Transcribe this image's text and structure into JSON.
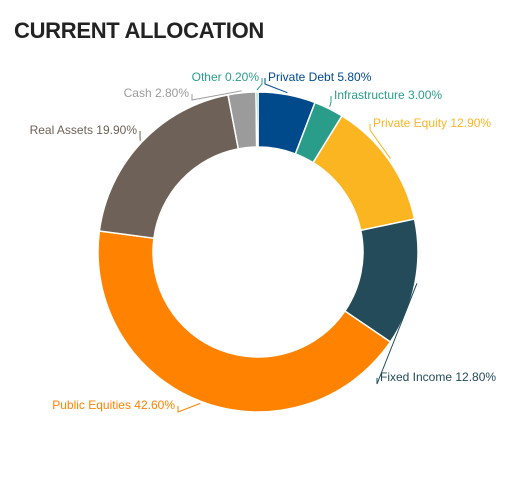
{
  "chart_data": {
    "type": "pie",
    "donut": true,
    "title": "CURRENT ALLOCATION",
    "categories": [
      "Private Debt",
      "Infrastructure",
      "Private Equity",
      "Fixed Income",
      "Public Equities",
      "Real Assets",
      "Cash",
      "Other"
    ],
    "values": [
      5.8,
      3.0,
      12.9,
      12.8,
      42.6,
      19.9,
      2.8,
      0.2
    ],
    "value_labels": [
      "5.80%",
      "3.00%",
      "12.90%",
      "12.80%",
      "42.60%",
      "19.90%",
      "2.80%",
      "0.20%"
    ],
    "colors": [
      "#004a8c",
      "#2a9d8a",
      "#fbb521",
      "#234b5a",
      "#ff8200",
      "#6e6157",
      "#9b9b9b",
      "#2a9d8a"
    ]
  }
}
